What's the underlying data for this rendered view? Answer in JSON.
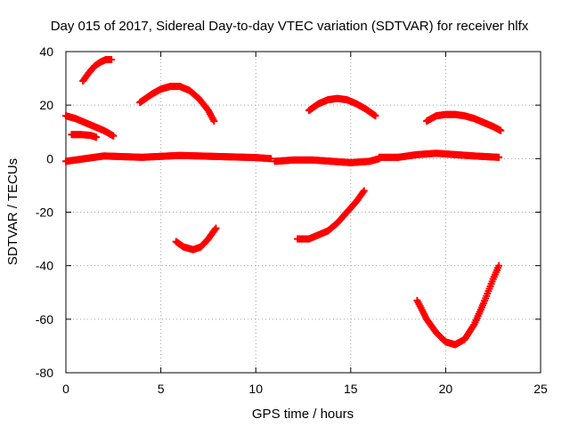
{
  "chart_data": {
    "type": "scatter",
    "title": "Day 015 of 2017, Sidereal Day-to-day VTEC variation (SDTVAR) for receiver hlfx",
    "xlabel": "GPS time / hours",
    "ylabel": "SDTVAR / TECUs",
    "xlim": [
      0,
      25
    ],
    "ylim": [
      -80,
      40
    ],
    "xticks": [
      0,
      5,
      10,
      15,
      20,
      25
    ],
    "yticks": [
      -80,
      -60,
      -40,
      -20,
      0,
      20,
      40
    ],
    "xtick_labels": [
      "0",
      "5",
      "10",
      "15",
      "20",
      "25"
    ],
    "ytick_labels": [
      "-80",
      "-60",
      "-40",
      "-20",
      "0",
      "20",
      "40"
    ],
    "grid": true,
    "marker_color": "#ff0000",
    "series": [
      {
        "x": [
          0.9,
          1.2,
          1.5,
          1.8,
          2.1,
          2.4
        ],
        "y": [
          29,
          32,
          34.5,
          36,
          37,
          37
        ]
      },
      {
        "x": [
          0.0,
          0.5,
          1.0,
          1.5,
          2.0,
          2.5
        ],
        "y": [
          16,
          15,
          13.5,
          12,
          10.5,
          8.5
        ]
      },
      {
        "x": [
          0.3,
          0.8,
          1.3,
          1.6
        ],
        "y": [
          9,
          9,
          8.7,
          8
        ]
      },
      {
        "x": [
          3.9,
          4.5,
          5.0,
          5.5,
          6.0,
          6.5,
          7.0,
          7.5,
          7.8
        ],
        "y": [
          21,
          24,
          26,
          27,
          27,
          25.5,
          22.5,
          18,
          14
        ]
      },
      {
        "x": [
          5.8,
          6.2,
          6.7,
          7.1,
          7.5,
          7.9
        ],
        "y": [
          -31,
          -33,
          -34,
          -33,
          -30,
          -26
        ]
      },
      {
        "x": [
          0.0,
          2.0,
          4.0,
          6.0,
          8.0,
          10.0,
          10.8
        ],
        "y": [
          -1,
          1,
          0.5,
          1.2,
          0.8,
          0.4,
          0
        ]
      },
      {
        "x": [
          11.0,
          12.0,
          13.0,
          14.0,
          15.0,
          16.0,
          16.5
        ],
        "y": [
          -1,
          -0.5,
          -0.5,
          -1,
          -1.5,
          -1,
          0
        ]
      },
      {
        "x": [
          16.5,
          17.5,
          18.5,
          19.5,
          20.5,
          21.5,
          22.8
        ],
        "y": [
          0.5,
          0.5,
          1.5,
          2,
          1.5,
          1,
          0.5
        ]
      },
      {
        "x": [
          12.8,
          13.3,
          13.8,
          14.3,
          14.8,
          15.3,
          15.8,
          16.3
        ],
        "y": [
          18,
          20.5,
          22,
          22.5,
          22,
          20.5,
          18.5,
          16
        ]
      },
      {
        "x": [
          12.2,
          12.8,
          13.3,
          13.8,
          14.3,
          14.8,
          15.3,
          15.7
        ],
        "y": [
          -30,
          -30,
          -28.5,
          -27,
          -24,
          -20,
          -16,
          -12
        ]
      },
      {
        "x": [
          19.0,
          19.5,
          20.0,
          20.5,
          21.0,
          21.5,
          22.0,
          22.5,
          22.9
        ],
        "y": [
          14,
          16,
          16.5,
          16.5,
          16,
          15,
          13.5,
          12,
          10.5
        ]
      },
      {
        "x": [
          18.5,
          19.0,
          19.5,
          20.0,
          20.5,
          21.0,
          21.5,
          22.0,
          22.5,
          22.8
        ],
        "y": [
          -53,
          -60,
          -65,
          -68.5,
          -69.5,
          -67.5,
          -62,
          -54,
          -45,
          -40
        ]
      }
    ]
  }
}
